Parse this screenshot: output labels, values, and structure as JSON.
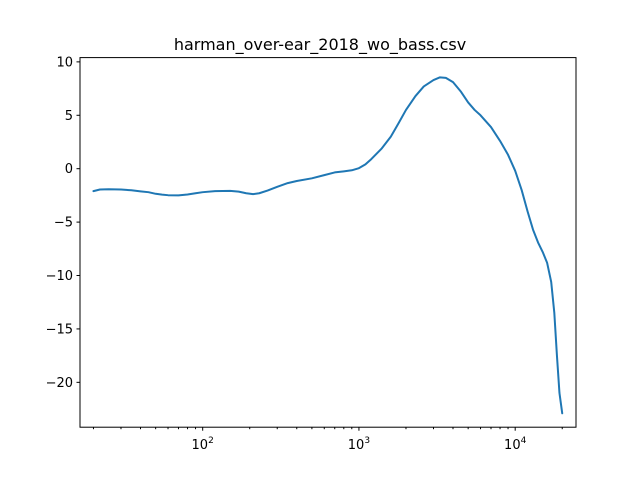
{
  "chart_data": {
    "type": "line",
    "title": "harman_over-ear_2018_wo_bass.csv",
    "xlabel": "",
    "ylabel": "",
    "xscale": "log",
    "xlim": [
      16.4,
      24500
    ],
    "ylim": [
      -24.2,
      10.4
    ],
    "grid": false,
    "y_ticks": [
      10,
      5,
      0,
      -5,
      -10,
      -15,
      -20
    ],
    "y_tick_labels": [
      "10",
      "5",
      "0",
      "−5",
      "−10",
      "−15",
      "−20"
    ],
    "x_ticks": [
      {
        "value": 100,
        "base": "10",
        "exp": "2"
      },
      {
        "value": 1000,
        "base": "10",
        "exp": "3"
      },
      {
        "value": 10000,
        "base": "10",
        "exp": "4"
      }
    ],
    "x_minor_ticks": [
      20,
      30,
      40,
      50,
      60,
      70,
      80,
      90,
      200,
      300,
      400,
      500,
      600,
      700,
      800,
      900,
      2000,
      3000,
      4000,
      5000,
      6000,
      7000,
      8000,
      9000,
      20000
    ],
    "series": [
      {
        "color": "#1f77b4",
        "points": [
          [
            20,
            -2.1
          ],
          [
            22,
            -1.95
          ],
          [
            25,
            -1.92
          ],
          [
            30,
            -1.95
          ],
          [
            35,
            -2.02
          ],
          [
            40,
            -2.12
          ],
          [
            45,
            -2.2
          ],
          [
            50,
            -2.35
          ],
          [
            55,
            -2.43
          ],
          [
            60,
            -2.48
          ],
          [
            70,
            -2.5
          ],
          [
            80,
            -2.42
          ],
          [
            90,
            -2.3
          ],
          [
            100,
            -2.2
          ],
          [
            120,
            -2.1
          ],
          [
            150,
            -2.08
          ],
          [
            170,
            -2.15
          ],
          [
            190,
            -2.3
          ],
          [
            210,
            -2.38
          ],
          [
            230,
            -2.3
          ],
          [
            260,
            -2.05
          ],
          [
            300,
            -1.7
          ],
          [
            350,
            -1.35
          ],
          [
            400,
            -1.15
          ],
          [
            500,
            -0.9
          ],
          [
            600,
            -0.6
          ],
          [
            700,
            -0.35
          ],
          [
            800,
            -0.25
          ],
          [
            900,
            -0.15
          ],
          [
            1000,
            0.05
          ],
          [
            1100,
            0.4
          ],
          [
            1200,
            0.9
          ],
          [
            1400,
            1.9
          ],
          [
            1600,
            3.0
          ],
          [
            1800,
            4.3
          ],
          [
            2000,
            5.5
          ],
          [
            2300,
            6.8
          ],
          [
            2600,
            7.7
          ],
          [
            3000,
            8.3
          ],
          [
            3300,
            8.55
          ],
          [
            3600,
            8.5
          ],
          [
            4000,
            8.1
          ],
          [
            4500,
            7.2
          ],
          [
            5000,
            6.2
          ],
          [
            5500,
            5.5
          ],
          [
            6000,
            5.0
          ],
          [
            7000,
            3.9
          ],
          [
            8000,
            2.6
          ],
          [
            9000,
            1.3
          ],
          [
            10000,
            -0.2
          ],
          [
            11000,
            -2.0
          ],
          [
            12000,
            -4.0
          ],
          [
            13000,
            -5.7
          ],
          [
            14000,
            -6.9
          ],
          [
            15000,
            -7.8
          ],
          [
            16000,
            -8.8
          ],
          [
            17000,
            -10.6
          ],
          [
            17800,
            -13.5
          ],
          [
            18500,
            -17.5
          ],
          [
            19200,
            -21.0
          ],
          [
            20000,
            -22.9
          ]
        ]
      }
    ]
  }
}
